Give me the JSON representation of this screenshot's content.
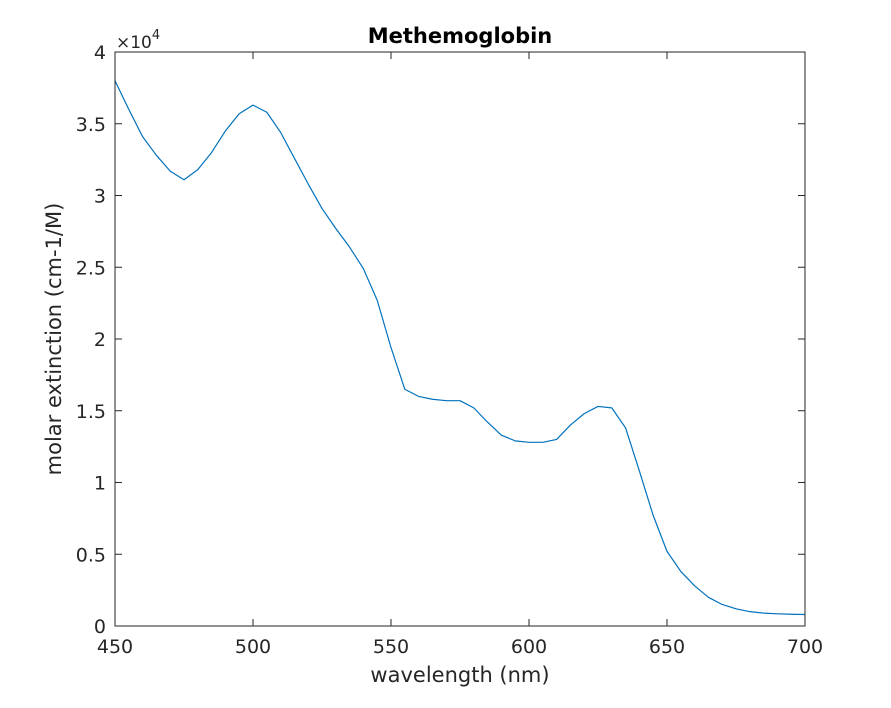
{
  "chart_data": {
    "type": "line",
    "title": "Methemoglobin",
    "xlabel": "wavelength (nm)",
    "ylabel": "molar extinction (cm-1/M)",
    "xlim": [
      450,
      700
    ],
    "ylim": [
      0,
      40000
    ],
    "x_ticks": [
      "450",
      "500",
      "550",
      "600",
      "650",
      "700"
    ],
    "y_ticks": [
      "0",
      "0.5",
      "1",
      "1.5",
      "2",
      "2.5",
      "3",
      "3.5",
      "4"
    ],
    "y_multiplier": "×10",
    "y_multiplier_exponent": "4",
    "grid": false,
    "series": [
      {
        "color": "#0072BD",
        "x": [
          450,
          455,
          460,
          465,
          470,
          475,
          480,
          485,
          490,
          495,
          500,
          505,
          510,
          515,
          520,
          525,
          530,
          535,
          540,
          545,
          550,
          555,
          560,
          565,
          570,
          575,
          580,
          585,
          590,
          595,
          600,
          605,
          610,
          615,
          620,
          625,
          630,
          635,
          640,
          645,
          650,
          655,
          660,
          665,
          670,
          675,
          680,
          685,
          690,
          695,
          700
        ],
        "y": [
          38000,
          36000,
          34100,
          32800,
          31700,
          31100,
          31800,
          33000,
          34500,
          35700,
          36300,
          35800,
          34400,
          32600,
          30800,
          29100,
          27700,
          26400,
          24900,
          22700,
          19400,
          16500,
          16000,
          15800,
          15700,
          15700,
          15200,
          14200,
          13300,
          12900,
          12800,
          12800,
          13000,
          14000,
          14800,
          15300,
          15200,
          13800,
          10800,
          7700,
          5200,
          3800,
          2800,
          2000,
          1500,
          1200,
          1000,
          900,
          850,
          820,
          800
        ]
      }
    ]
  }
}
